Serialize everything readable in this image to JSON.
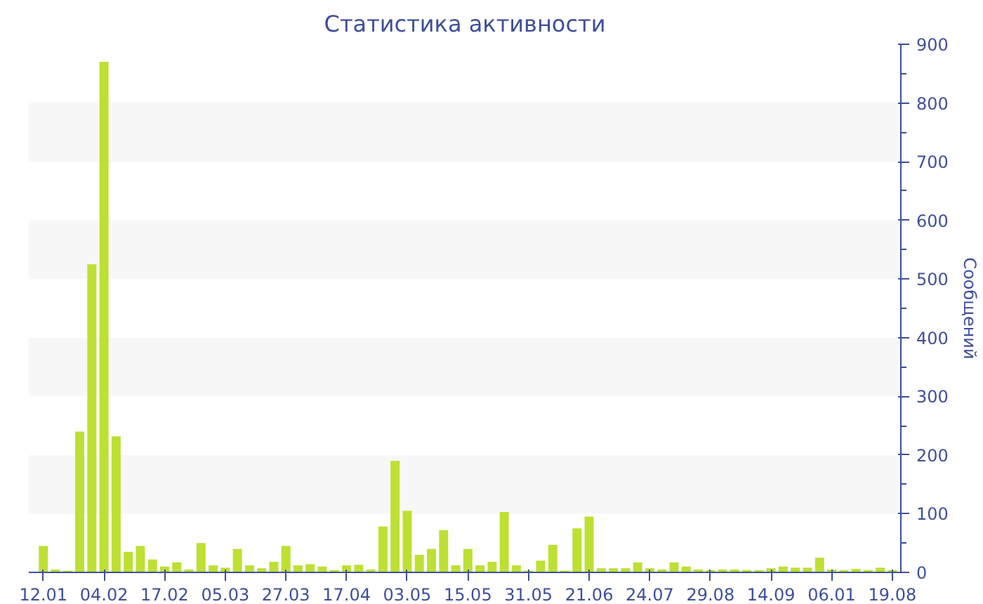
{
  "chart_data": {
    "type": "bar",
    "title": "Статистика активности",
    "ylabel": "Сообщений",
    "categories": [
      "12.01",
      null,
      null,
      null,
      null,
      "04.02",
      null,
      null,
      null,
      null,
      "17.02",
      null,
      null,
      null,
      null,
      "05.03",
      null,
      null,
      null,
      null,
      "27.03",
      null,
      null,
      null,
      null,
      "17.04",
      null,
      null,
      null,
      null,
      "03.05",
      null,
      null,
      null,
      null,
      "15.05",
      null,
      null,
      null,
      null,
      "31.05",
      null,
      null,
      null,
      null,
      "21.06",
      null,
      null,
      null,
      null,
      "24.07",
      null,
      null,
      null,
      null,
      "29.08",
      null,
      null,
      null,
      null,
      "14.09",
      null,
      null,
      null,
      null,
      "06.01",
      null,
      null,
      null,
      null,
      "19.08"
    ],
    "values": [
      45,
      5,
      3,
      240,
      525,
      870,
      232,
      35,
      45,
      22,
      10,
      17,
      5,
      50,
      12,
      8,
      40,
      12,
      7,
      18,
      45,
      12,
      14,
      10,
      4,
      12,
      13,
      5,
      78,
      190,
      105,
      30,
      40,
      72,
      12,
      40,
      12,
      18,
      103,
      12,
      3,
      20,
      47,
      3,
      75,
      95,
      7,
      7,
      7,
      17,
      7,
      5,
      17,
      10,
      5,
      4,
      5,
      5,
      4,
      4,
      7,
      10,
      8,
      8,
      25,
      5,
      4,
      6,
      4,
      8,
      4
    ],
    "color": "#bde033",
    "ylim": [
      0,
      900
    ],
    "yticks": [
      0,
      100,
      200,
      300,
      400,
      500,
      600,
      700,
      800,
      900
    ],
    "bands": [
      {
        "axis": "y",
        "from": 100,
        "to": 200,
        "color": "#f7f7f7"
      },
      {
        "axis": "y",
        "from": 300,
        "to": 400,
        "color": "#f7f7f7"
      },
      {
        "axis": "y",
        "from": 500,
        "to": 600,
        "color": "#f7f7f7"
      },
      {
        "axis": "y",
        "from": 700,
        "to": 800,
        "color": "#f7f7f7"
      }
    ]
  }
}
